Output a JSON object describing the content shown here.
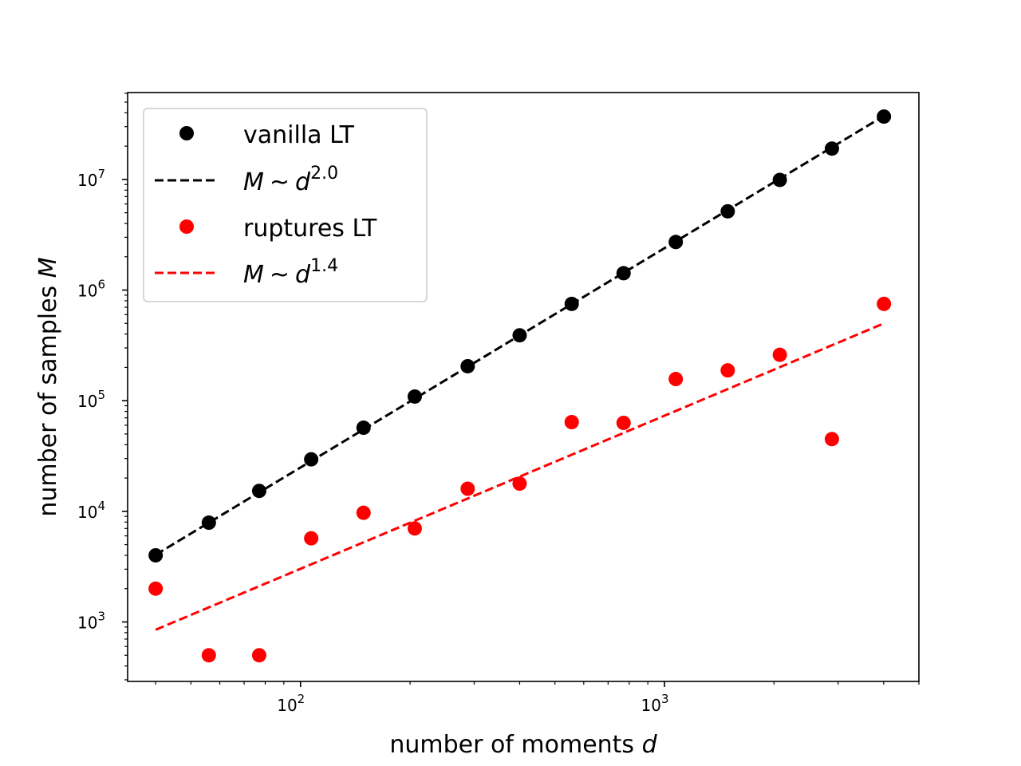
{
  "chart_data": {
    "type": "scatter",
    "xscale": "log",
    "yscale": "log",
    "xlim": [
      33.5,
      5000
    ],
    "ylim": [
      290,
      61000000
    ],
    "grid": false,
    "legend_position": "top-left",
    "xlabel": "number of moments",
    "xlabel_var": "d",
    "ylabel": "number of samples",
    "ylabel_var": "M",
    "x_ticks": [
      {
        "value": 100,
        "base": "10",
        "exp": "2"
      },
      {
        "value": 1000,
        "base": "10",
        "exp": "3"
      }
    ],
    "y_ticks": [
      {
        "value": 1000,
        "base": "10",
        "exp": "3"
      },
      {
        "value": 10000,
        "base": "10",
        "exp": "4"
      },
      {
        "value": 100000,
        "base": "10",
        "exp": "5"
      },
      {
        "value": 1000000,
        "base": "10",
        "exp": "6"
      },
      {
        "value": 10000000,
        "base": "10",
        "exp": "7"
      }
    ],
    "series": [
      {
        "name": "vanilla LT",
        "kind": "points",
        "color": "#000000",
        "x": [
          40,
          56,
          77,
          107,
          149,
          206,
          288,
          400,
          556,
          772,
          1074,
          1492,
          2074,
          2884,
          4008
        ],
        "y": [
          4000,
          7900,
          15300,
          29500,
          57000,
          109000,
          205000,
          390000,
          750000,
          1420000,
          2720000,
          5150000,
          9900000,
          19000000,
          37000000
        ]
      },
      {
        "name": "M ~ d^{2.0}",
        "label_lhs": "M",
        "label_sim": "~",
        "label_base": "d",
        "label_exp": "2.0",
        "kind": "line",
        "dashed": true,
        "color": "#000000",
        "x": [
          40,
          4008
        ],
        "y": [
          4050,
          37500000
        ]
      },
      {
        "name": "ruptures LT",
        "kind": "points",
        "color": "#ff0000",
        "x": [
          40,
          56,
          77,
          107,
          149,
          206,
          288,
          400,
          556,
          772,
          1074,
          1492,
          2074,
          2884,
          4008
        ],
        "y": [
          2000,
          500,
          500,
          5700,
          9700,
          7000,
          16000,
          17800,
          64000,
          63000,
          157000,
          188000,
          260000,
          45000,
          750000
        ]
      },
      {
        "name": "M ~ d^{1.4}",
        "label_lhs": "M",
        "label_sim": "~",
        "label_base": "d",
        "label_exp": "1.4",
        "kind": "line",
        "dashed": true,
        "color": "#ff0000",
        "x": [
          40,
          4008
        ],
        "y": [
          850,
          500000
        ]
      }
    ]
  }
}
